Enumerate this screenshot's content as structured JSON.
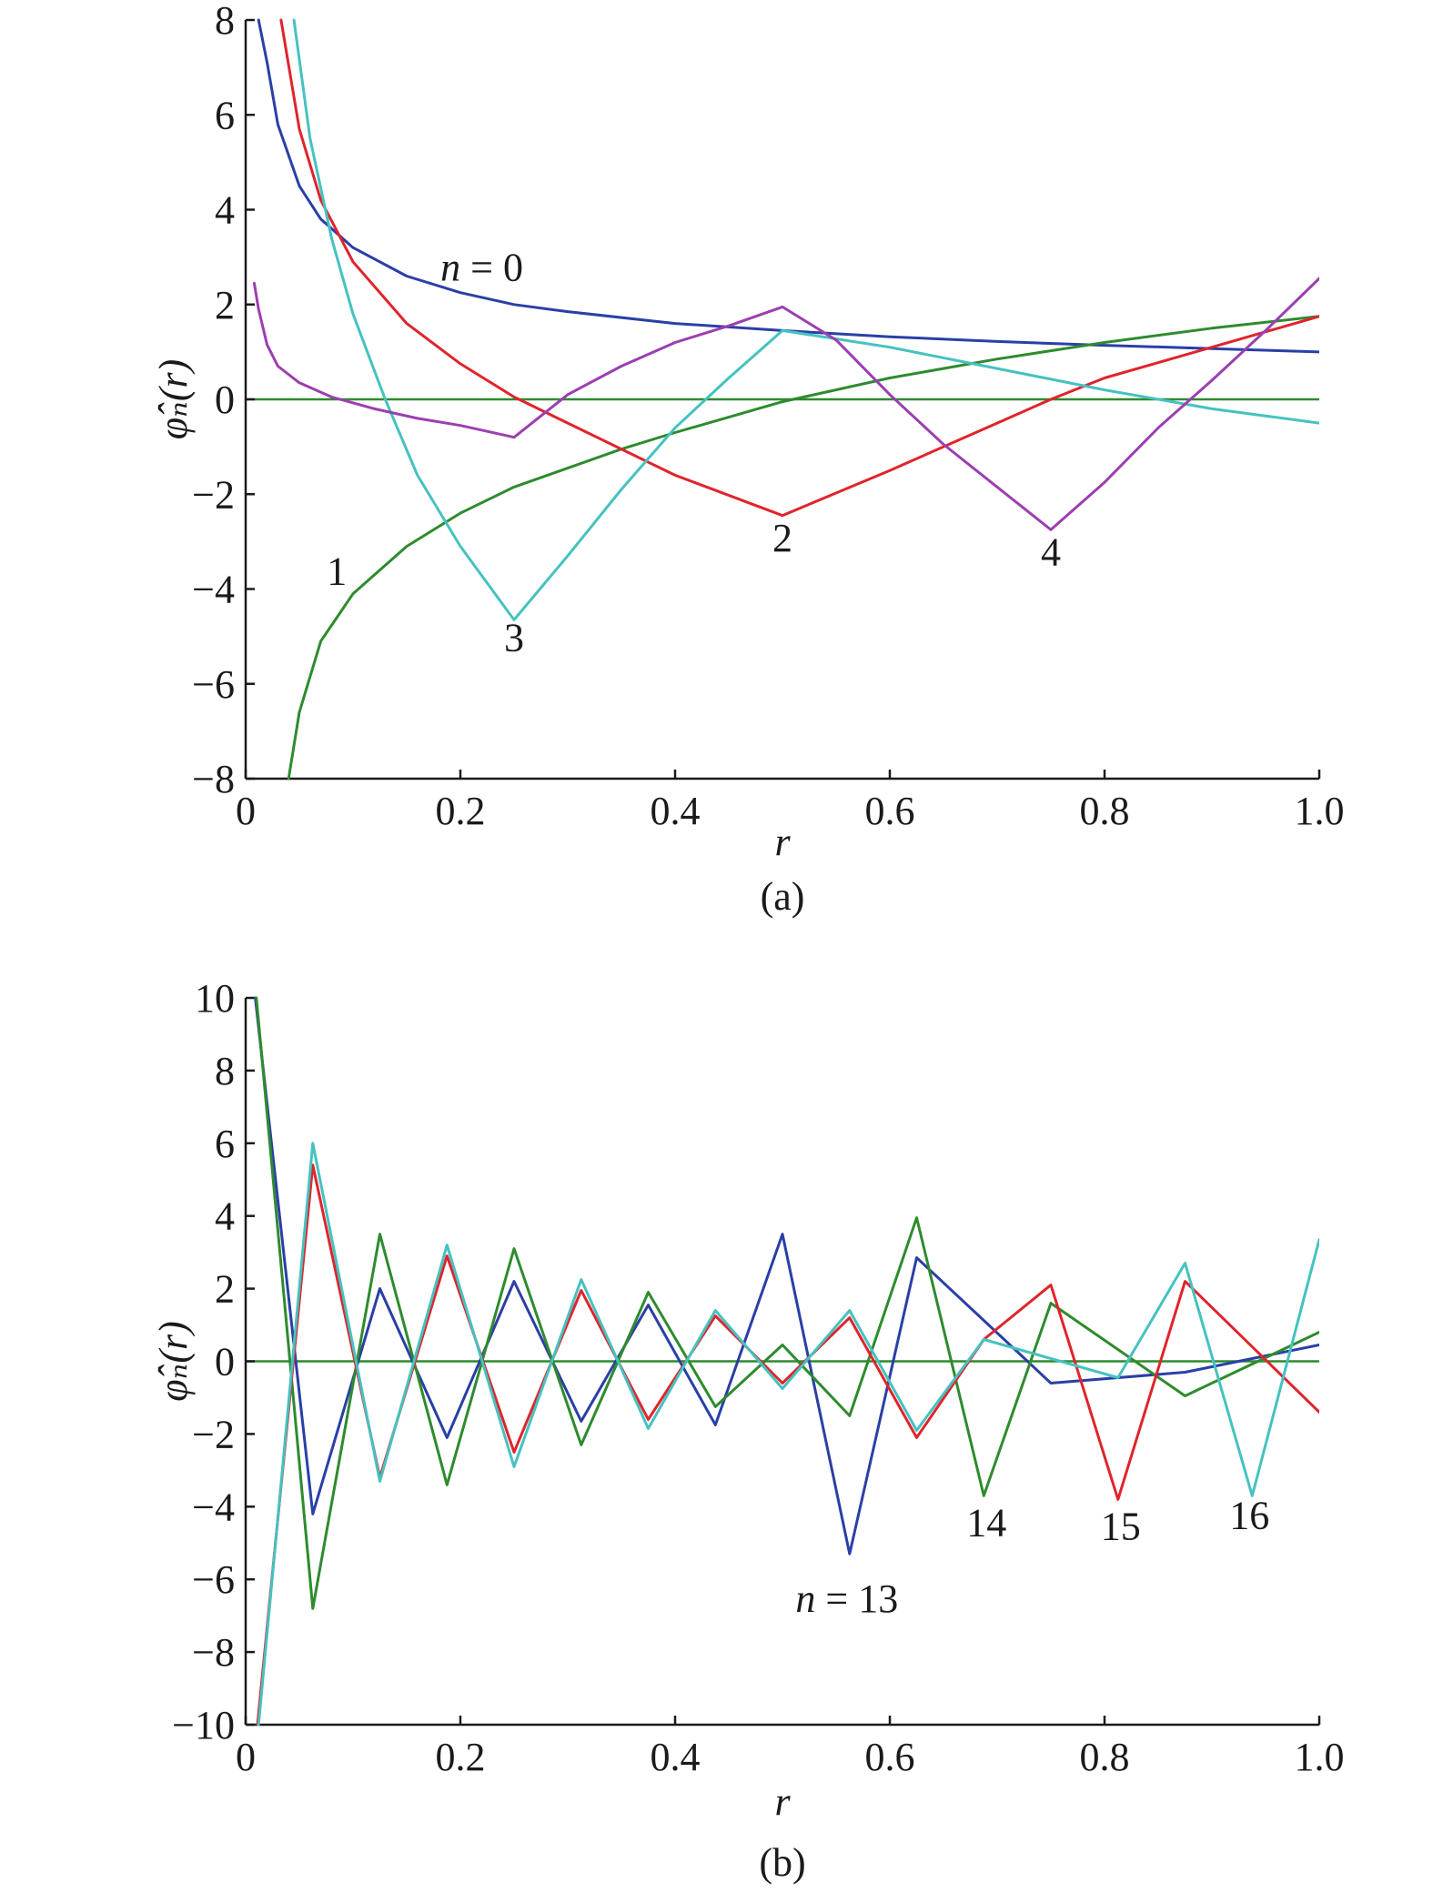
{
  "chart_data": [
    {
      "id": "a",
      "type": "line",
      "caption": "(a)",
      "xlabel": "r",
      "ylabel": "φ̂ₙ(r)",
      "xlim": [
        0,
        1.0
      ],
      "ylim": [
        -8,
        8
      ],
      "xticks": [
        0,
        0.2,
        0.4,
        0.6,
        0.8,
        1.0
      ],
      "xtick_labels": [
        "0",
        "0.2",
        "0.4",
        "0.6",
        "0.8",
        "1.0"
      ],
      "yticks": [
        8,
        6,
        4,
        2,
        0,
        -2,
        -4,
        -6,
        -8
      ],
      "ytick_labels": [
        "8",
        "6",
        "4",
        "2",
        "0",
        "−2",
        "−4",
        "−6",
        "−8"
      ],
      "grid": false,
      "zero_line_color": "#2e8b2e",
      "series": [
        {
          "name": "n = 0",
          "color": "#2a3fa6",
          "x": [
            0.012,
            0.02,
            0.03,
            0.05,
            0.07,
            0.1,
            0.15,
            0.2,
            0.25,
            0.3,
            0.4,
            0.5,
            0.6,
            0.7,
            0.8,
            0.9,
            1.0
          ],
          "y": [
            8.0,
            7.1,
            5.8,
            4.5,
            3.8,
            3.2,
            2.6,
            2.25,
            2.0,
            1.85,
            1.6,
            1.45,
            1.32,
            1.22,
            1.14,
            1.07,
            1.0
          ]
        },
        {
          "name": "1",
          "color": "#2e8b2e",
          "x": [
            0.04,
            0.05,
            0.07,
            0.1,
            0.15,
            0.2,
            0.25,
            0.3,
            0.35,
            0.4,
            0.5,
            0.6,
            0.7,
            0.8,
            0.9,
            1.0
          ],
          "y": [
            -8.0,
            -6.6,
            -5.1,
            -4.1,
            -3.1,
            -2.4,
            -1.85,
            -1.45,
            -1.05,
            -0.7,
            -0.05,
            0.45,
            0.85,
            1.2,
            1.5,
            1.75
          ]
        },
        {
          "name": "2",
          "color": "#e0242c",
          "x": [
            0.033,
            0.05,
            0.07,
            0.1,
            0.15,
            0.2,
            0.25,
            0.3,
            0.4,
            0.5,
            0.6,
            0.7,
            0.75,
            0.8,
            0.9,
            1.0
          ],
          "y": [
            8.0,
            5.7,
            4.2,
            2.9,
            1.6,
            0.75,
            0.05,
            -0.5,
            -1.6,
            -2.45,
            -1.5,
            -0.5,
            0.0,
            0.45,
            1.1,
            1.75
          ]
        },
        {
          "name": "3",
          "color": "#45c2c0",
          "x": [
            0.045,
            0.06,
            0.08,
            0.1,
            0.13,
            0.16,
            0.2,
            0.25,
            0.3,
            0.35,
            0.4,
            0.45,
            0.5,
            0.6,
            0.7,
            0.8,
            0.9,
            1.0
          ],
          "y": [
            8.0,
            5.5,
            3.4,
            1.8,
            0.0,
            -1.6,
            -3.1,
            -4.65,
            -3.3,
            -1.9,
            -0.6,
            0.45,
            1.45,
            1.1,
            0.65,
            0.2,
            -0.2,
            -0.5
          ]
        },
        {
          "name": "4",
          "color": "#9b3fb0",
          "x": [
            0.008,
            0.012,
            0.02,
            0.03,
            0.05,
            0.08,
            0.12,
            0.16,
            0.2,
            0.25,
            0.3,
            0.35,
            0.4,
            0.45,
            0.5,
            0.55,
            0.6,
            0.65,
            0.7,
            0.75,
            0.8,
            0.85,
            0.9,
            0.95,
            1.0
          ],
          "y": [
            2.45,
            1.9,
            1.15,
            0.7,
            0.35,
            0.05,
            -0.2,
            -0.4,
            -0.55,
            -0.8,
            0.1,
            0.7,
            1.2,
            1.55,
            1.95,
            1.25,
            0.1,
            -0.95,
            -1.85,
            -2.75,
            -1.75,
            -0.6,
            0.4,
            1.45,
            2.55
          ]
        }
      ],
      "annotations": [
        {
          "text": "n = 0",
          "x": 0.22,
          "y": 2.5
        },
        {
          "text": "1",
          "x": 0.085,
          "y": -3.9
        },
        {
          "text": "2",
          "x": 0.5,
          "y": -3.2
        },
        {
          "text": "3",
          "x": 0.25,
          "y": -5.3
        },
        {
          "text": "4",
          "x": 0.75,
          "y": -3.5
        }
      ]
    },
    {
      "id": "b",
      "type": "line",
      "caption": "(b)",
      "xlabel": "r",
      "ylabel": "φ̂ₙ(r)",
      "xlim": [
        0,
        1.0
      ],
      "ylim": [
        -10,
        10
      ],
      "xticks": [
        0,
        0.2,
        0.4,
        0.6,
        0.8,
        1.0
      ],
      "xtick_labels": [
        "0",
        "0.2",
        "0.4",
        "0.6",
        "0.8",
        "1.0"
      ],
      "yticks": [
        10,
        8,
        6,
        4,
        2,
        0,
        -2,
        -4,
        -6,
        -8,
        -10
      ],
      "ytick_labels": [
        "10",
        "8",
        "6",
        "4",
        "2",
        "0",
        "−2",
        "−4",
        "−6",
        "−8",
        "−10"
      ],
      "grid": false,
      "zero_line_color": "#2e8b2e",
      "series": [
        {
          "name": "n = 13",
          "color": "#2a3fa6",
          "x": [
            0.009,
            0.0625,
            0.125,
            0.1875,
            0.25,
            0.3125,
            0.375,
            0.4375,
            0.5,
            0.5625,
            0.625,
            0.75,
            0.875,
            1.0
          ],
          "y": [
            10.0,
            -4.2,
            2.0,
            -2.1,
            2.2,
            -1.65,
            1.55,
            -1.75,
            3.5,
            -5.3,
            2.85,
            -0.6,
            -0.3,
            0.45
          ]
        },
        {
          "name": "14",
          "color": "#2e8b2e",
          "x": [
            0.01,
            0.0625,
            0.125,
            0.1875,
            0.25,
            0.3125,
            0.375,
            0.4375,
            0.5,
            0.5625,
            0.625,
            0.6875,
            0.75,
            0.875,
            1.0
          ],
          "y": [
            10.0,
            -6.8,
            3.5,
            -3.4,
            3.1,
            -2.3,
            1.9,
            -1.25,
            0.45,
            -1.5,
            3.95,
            -3.7,
            1.6,
            -0.95,
            0.8
          ]
        },
        {
          "name": "15",
          "color": "#e0242c",
          "x": [
            0.011,
            0.0625,
            0.125,
            0.1875,
            0.25,
            0.3125,
            0.375,
            0.4375,
            0.5,
            0.5625,
            0.625,
            0.6875,
            0.75,
            0.8125,
            0.875,
            1.0
          ],
          "y": [
            -10.0,
            5.4,
            -3.2,
            2.9,
            -2.5,
            1.95,
            -1.6,
            1.25,
            -0.6,
            1.2,
            -2.1,
            0.6,
            2.1,
            -3.8,
            2.2,
            -1.4
          ]
        },
        {
          "name": "16",
          "color": "#45c2c0",
          "x": [
            0.012,
            0.0625,
            0.125,
            0.1875,
            0.25,
            0.3125,
            0.375,
            0.4375,
            0.5,
            0.5625,
            0.625,
            0.6875,
            0.8125,
            0.875,
            0.9375,
            1.0
          ],
          "y": [
            -10.0,
            6.0,
            -3.3,
            3.2,
            -2.9,
            2.25,
            -1.85,
            1.4,
            -0.75,
            1.4,
            -1.9,
            0.6,
            -0.45,
            2.7,
            -3.7,
            3.35
          ]
        }
      ],
      "annotations": [
        {
          "text": "n = 13",
          "x": 0.56,
          "y": -6.9
        },
        {
          "text": "14",
          "x": 0.69,
          "y": -4.8
        },
        {
          "text": "15",
          "x": 0.815,
          "y": -4.9
        },
        {
          "text": "16",
          "x": 0.935,
          "y": -4.6
        }
      ]
    }
  ]
}
